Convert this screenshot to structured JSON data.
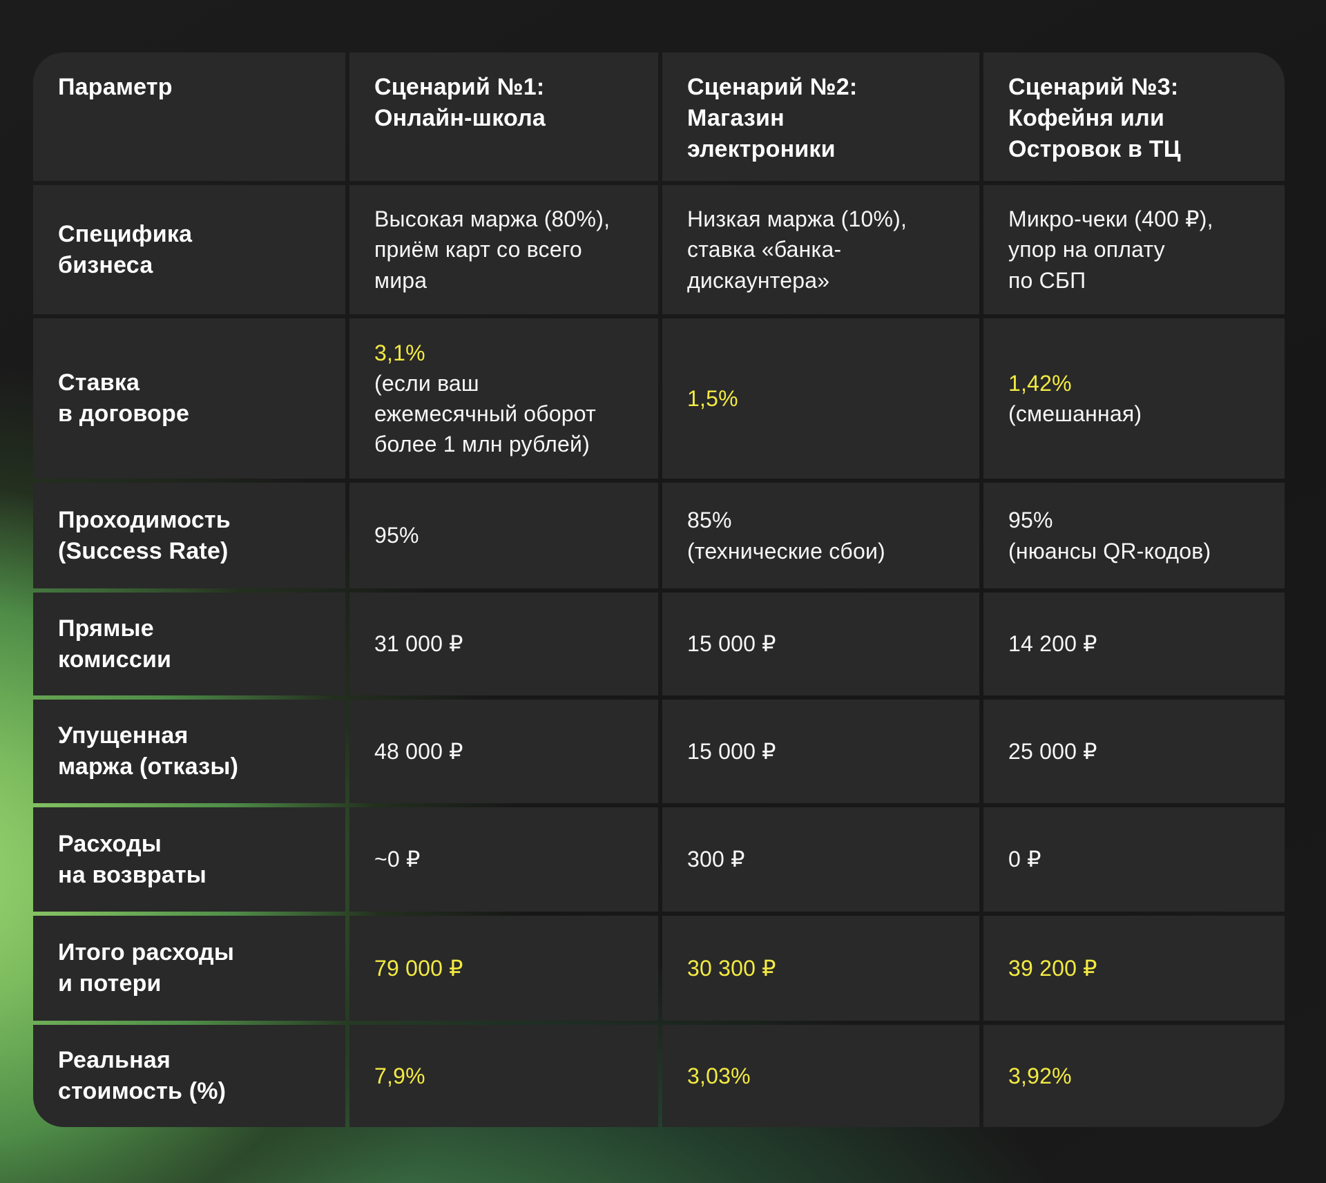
{
  "colors": {
    "page_background": "#181818",
    "cell_background": "#292929",
    "text": "#F7F7F7",
    "accent_yellow": "#F3EA43",
    "glow_green": "#96D468"
  },
  "chart_data": {
    "type": "table",
    "title": "",
    "currency_symbol": "₽",
    "columns": [
      {
        "segments": [
          {
            "text": "Параметр",
            "highlight": false
          }
        ]
      },
      {
        "segments": [
          {
            "text": "Сценарий №1:",
            "highlight": true
          },
          {
            "text": "Онлайн-школа",
            "highlight": false
          }
        ]
      },
      {
        "segments": [
          {
            "text": "Сценарий №2:",
            "highlight": true
          },
          {
            "text": "Магазин\nэлектроники",
            "highlight": false
          }
        ]
      },
      {
        "segments": [
          {
            "text": "Сценарий №3:",
            "highlight": true
          },
          {
            "text": "Кофейня или\nОстровок в ТЦ",
            "highlight": false
          }
        ]
      }
    ],
    "rows": [
      {
        "label": {
          "segments": [
            {
              "text": "Специфика\nбизнеса",
              "highlight": false
            }
          ]
        },
        "cells": [
          {
            "segments": [
              {
                "text": "Высокая маржа (80%),\nприём карт со всего\nмира",
                "highlight": false
              }
            ]
          },
          {
            "segments": [
              {
                "text": "Низкая маржа (10%),\nставка «банка-\nдискаунтера»",
                "highlight": false
              }
            ]
          },
          {
            "segments": [
              {
                "text": "Микро-чеки (400 ₽),\nупор на оплату\nпо СБП",
                "highlight": false
              }
            ]
          }
        ]
      },
      {
        "label": {
          "segments": [
            {
              "text": "Ставка\nв договоре",
              "highlight": false
            }
          ]
        },
        "cells": [
          {
            "segments": [
              {
                "text": "3,1%",
                "highlight": true
              },
              {
                "text": "(если ваш\nежемесячный оборот\nболее 1 млн рублей)",
                "highlight": false
              }
            ]
          },
          {
            "segments": [
              {
                "text": "1,5%",
                "highlight": true
              }
            ]
          },
          {
            "segments": [
              {
                "text": "1,42%",
                "highlight": true
              },
              {
                "text": "(смешанная)",
                "highlight": false
              }
            ]
          }
        ]
      },
      {
        "label": {
          "segments": [
            {
              "text": "Проходимость\n(Success Rate)",
              "highlight": false
            }
          ]
        },
        "cells": [
          {
            "segments": [
              {
                "text": "95%",
                "highlight": false
              }
            ]
          },
          {
            "segments": [
              {
                "text": "85%\n(технические сбои)",
                "highlight": false
              }
            ]
          },
          {
            "segments": [
              {
                "text": "95%\n(нюансы QR-кодов)",
                "highlight": false
              }
            ]
          }
        ]
      },
      {
        "label": {
          "segments": [
            {
              "text": "Прямые\nкомиссии",
              "highlight": false
            }
          ]
        },
        "cells": [
          {
            "segments": [
              {
                "text": "31 000 ₽",
                "highlight": false
              }
            ]
          },
          {
            "segments": [
              {
                "text": "15 000 ₽",
                "highlight": false
              }
            ]
          },
          {
            "segments": [
              {
                "text": "14 200 ₽",
                "highlight": false
              }
            ]
          }
        ]
      },
      {
        "label": {
          "segments": [
            {
              "text": "Упущенная\nмаржа (отказы)",
              "highlight": false
            }
          ]
        },
        "cells": [
          {
            "segments": [
              {
                "text": "48 000 ₽",
                "highlight": false
              }
            ]
          },
          {
            "segments": [
              {
                "text": "15 000 ₽",
                "highlight": false
              }
            ]
          },
          {
            "segments": [
              {
                "text": "25 000 ₽",
                "highlight": false
              }
            ]
          }
        ]
      },
      {
        "label": {
          "segments": [
            {
              "text": "Расходы\nна возвраты",
              "highlight": false
            }
          ]
        },
        "cells": [
          {
            "segments": [
              {
                "text": "~0 ₽",
                "highlight": false
              }
            ]
          },
          {
            "segments": [
              {
                "text": "300 ₽",
                "highlight": false
              }
            ]
          },
          {
            "segments": [
              {
                "text": "0 ₽",
                "highlight": false
              }
            ]
          }
        ]
      },
      {
        "label": {
          "segments": [
            {
              "text": "Итого расходы\nи потери",
              "highlight": false
            }
          ]
        },
        "cells": [
          {
            "segments": [
              {
                "text": "79 000 ₽",
                "highlight": true
              }
            ]
          },
          {
            "segments": [
              {
                "text": "30 300 ₽",
                "highlight": true
              }
            ]
          },
          {
            "segments": [
              {
                "text": "39 200 ₽",
                "highlight": true
              }
            ]
          }
        ]
      },
      {
        "label": {
          "segments": [
            {
              "text": "Реальная\nстоимость (%)",
              "highlight": false
            }
          ]
        },
        "cells": [
          {
            "segments": [
              {
                "text": "7,9%",
                "highlight": true
              }
            ]
          },
          {
            "segments": [
              {
                "text": "3,03%",
                "highlight": true
              }
            ]
          },
          {
            "segments": [
              {
                "text": "3,92%",
                "highlight": true
              }
            ]
          }
        ]
      }
    ]
  }
}
